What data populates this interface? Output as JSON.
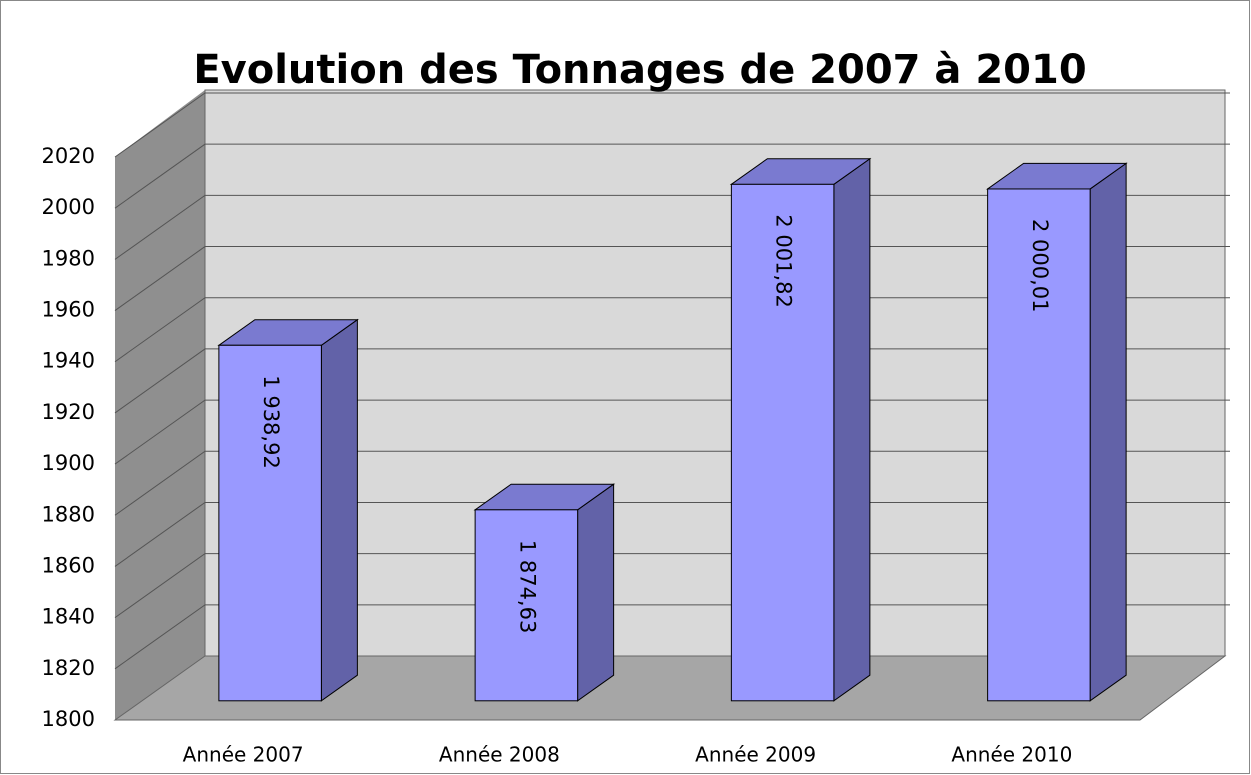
{
  "chart_data": {
    "type": "bar3d",
    "title": "Evolution des Tonnages de 2007 à 2010",
    "categories": [
      "Année 2007",
      "Année 2008",
      "Année 2009",
      "Année 2010"
    ],
    "values": [
      1938.92,
      1874.63,
      2001.82,
      2000.01
    ],
    "value_labels": [
      "1 938,92",
      "1 874,63",
      "2 001,82",
      "2 000,01"
    ],
    "color": "#9999ff",
    "ylim": [
      1800,
      2020
    ],
    "yticks": [
      1800,
      1820,
      1840,
      1860,
      1880,
      1900,
      1920,
      1940,
      1960,
      1980,
      2000,
      2020
    ],
    "grid": true
  }
}
